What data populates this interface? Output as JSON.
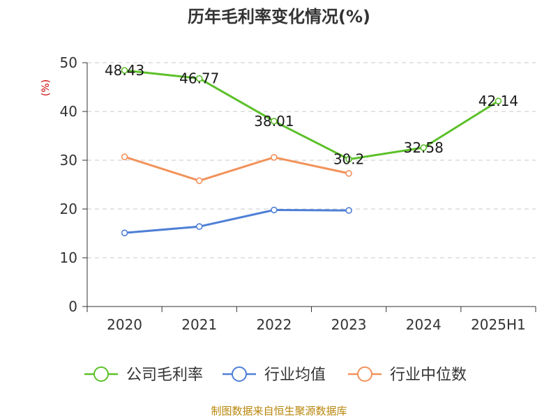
{
  "chart_data": {
    "type": "line",
    "title": "历年毛利率变化情况(%)",
    "ylabel": "(%)",
    "categories": [
      "2020",
      "2021",
      "2022",
      "2023",
      "2024",
      "2025H1"
    ],
    "ylim": [
      0,
      50
    ],
    "yticks": [
      "0",
      "10",
      "20",
      "30",
      "40",
      "50"
    ],
    "grid": true,
    "legend_position": "bottom",
    "series": [
      {
        "name": "公司毛利率",
        "color": "#5cc02a",
        "values": [
          48.43,
          46.77,
          38.01,
          30.2,
          32.58,
          42.14
        ],
        "labels": [
          "48.43",
          "46.77",
          "38.01",
          "30.2",
          "32.58",
          "42.14"
        ]
      },
      {
        "name": "行业均值",
        "color": "#4e7fd6",
        "values": [
          15.1,
          16.4,
          19.8,
          19.7,
          null,
          null
        ]
      },
      {
        "name": "行业中位数",
        "color": "#f2925a",
        "values": [
          30.7,
          25.8,
          30.6,
          27.3,
          null,
          null
        ]
      }
    ]
  },
  "footer": {
    "source": "制图数据来自恒生聚源数据库"
  }
}
